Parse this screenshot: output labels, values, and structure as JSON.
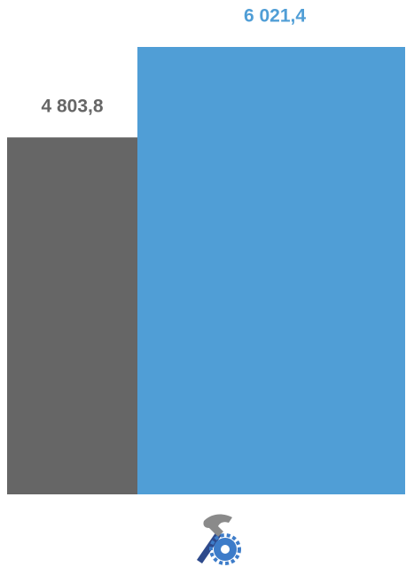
{
  "chart_data": {
    "type": "bar",
    "categories": [
      null,
      null
    ],
    "values": [
      4803.8,
      6021.4
    ],
    "value_labels": [
      "4 803,8",
      "6 021,4"
    ],
    "colors": [
      "#666666",
      "#509ed6"
    ]
  }
}
